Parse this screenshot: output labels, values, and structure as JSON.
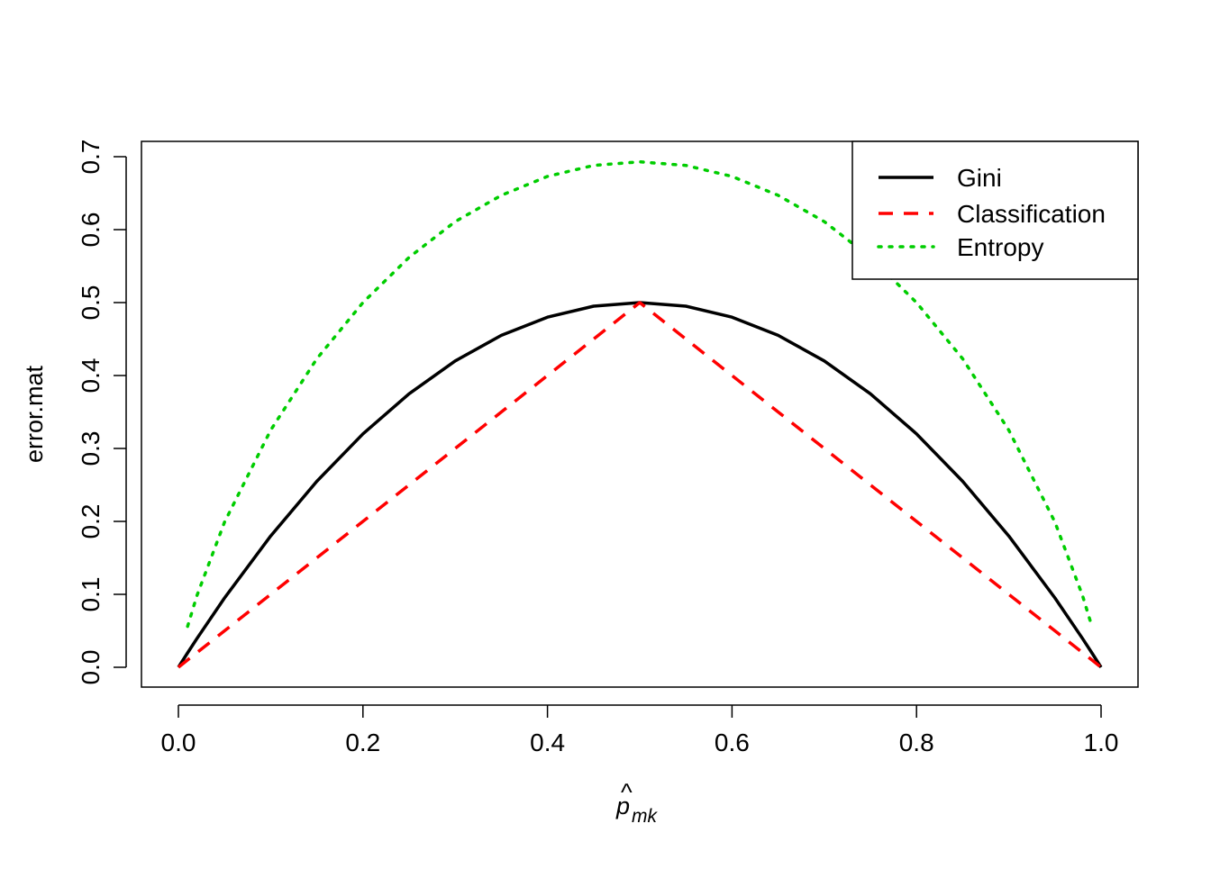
{
  "chart_data": {
    "type": "line",
    "title": "",
    "xlabel": "p̂_mk",
    "xlabel_parts": {
      "base": "p",
      "hat": "^",
      "subscript": "mk"
    },
    "ylabel": "error.mat",
    "xlim": [
      0,
      1
    ],
    "ylim": [
      0,
      0.7
    ],
    "x_ticks": [
      {
        "value": 0.0,
        "label": "0.0"
      },
      {
        "value": 0.2,
        "label": "0.2"
      },
      {
        "value": 0.4,
        "label": "0.4"
      },
      {
        "value": 0.6,
        "label": "0.6"
      },
      {
        "value": 0.8,
        "label": "0.8"
      },
      {
        "value": 1.0,
        "label": "1.0"
      }
    ],
    "y_ticks": [
      {
        "value": 0.0,
        "label": "0.0"
      },
      {
        "value": 0.1,
        "label": "0.1"
      },
      {
        "value": 0.2,
        "label": "0.2"
      },
      {
        "value": 0.3,
        "label": "0.3"
      },
      {
        "value": 0.4,
        "label": "0.4"
      },
      {
        "value": 0.5,
        "label": "0.5"
      },
      {
        "value": 0.6,
        "label": "0.6"
      },
      {
        "value": 0.7,
        "label": "0.7"
      }
    ],
    "grid": false,
    "legend_position": "top-right",
    "x": [
      0.0,
      0.01,
      0.02,
      0.05,
      0.1,
      0.15,
      0.2,
      0.25,
      0.3,
      0.35,
      0.4,
      0.45,
      0.5,
      0.55,
      0.6,
      0.65,
      0.7,
      0.75,
      0.8,
      0.85,
      0.9,
      0.95,
      0.98,
      0.99,
      1.0
    ],
    "series": [
      {
        "name": "Gini",
        "color": "#000000",
        "dash": "solid",
        "values": [
          0.0,
          0.0198,
          0.0392,
          0.095,
          0.18,
          0.255,
          0.32,
          0.375,
          0.42,
          0.455,
          0.48,
          0.495,
          0.5,
          0.495,
          0.48,
          0.455,
          0.42,
          0.375,
          0.32,
          0.255,
          0.18,
          0.095,
          0.0392,
          0.0198,
          0.0
        ]
      },
      {
        "name": "Classification",
        "color": "#ff0000",
        "dash": "dashed",
        "values": [
          0.0,
          0.01,
          0.02,
          0.05,
          0.1,
          0.15,
          0.2,
          0.25,
          0.3,
          0.35,
          0.4,
          0.45,
          0.5,
          0.45,
          0.4,
          0.35,
          0.3,
          0.25,
          0.2,
          0.15,
          0.1,
          0.05,
          0.02,
          0.01,
          0.0
        ]
      },
      {
        "name": "Entropy",
        "color": "#00cd00",
        "dash": "dotted",
        "values": [
          null,
          0.056,
          0.098,
          0.199,
          0.325,
          0.423,
          0.5,
          0.562,
          0.611,
          0.647,
          0.673,
          0.688,
          0.693,
          0.688,
          0.673,
          0.647,
          0.611,
          0.562,
          0.5,
          0.423,
          0.325,
          0.199,
          0.098,
          0.056,
          null
        ]
      }
    ]
  }
}
